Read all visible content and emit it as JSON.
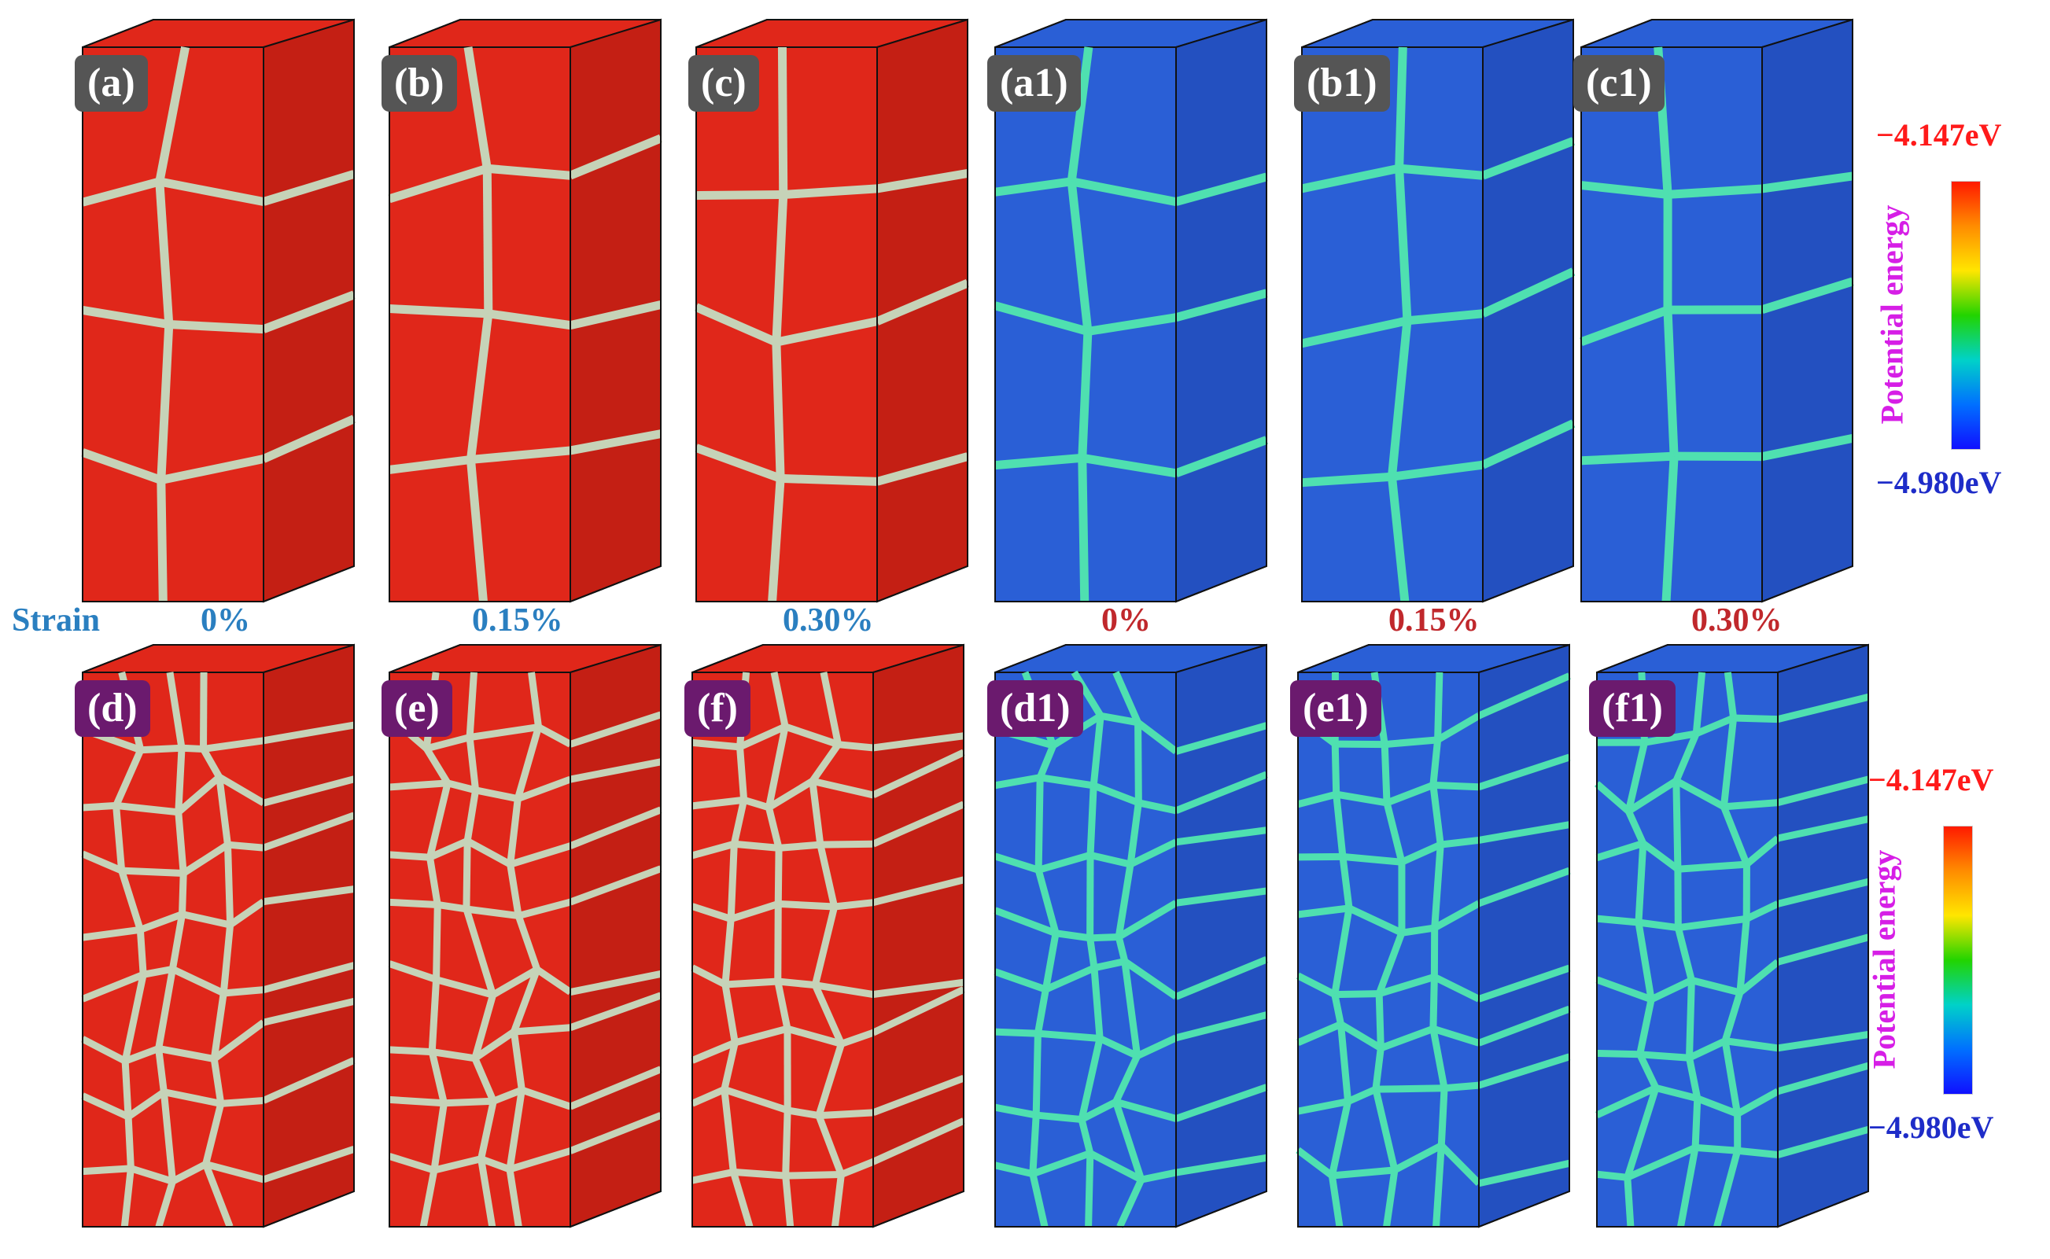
{
  "panels_top": [
    {
      "label": "(a)",
      "style": "red"
    },
    {
      "label": "(b)",
      "style": "red"
    },
    {
      "label": "(c)",
      "style": "red"
    },
    {
      "label": "(a1)",
      "style": "blue"
    },
    {
      "label": "(b1)",
      "style": "blue"
    },
    {
      "label": "(c1)",
      "style": "blue"
    }
  ],
  "panels_bottom": [
    {
      "label": "(d)",
      "style": "red"
    },
    {
      "label": "(e)",
      "style": "red"
    },
    {
      "label": "(f)",
      "style": "red"
    },
    {
      "label": "(d1)",
      "style": "blue"
    },
    {
      "label": "(e1)",
      "style": "blue"
    },
    {
      "label": "(f1)",
      "style": "blue"
    }
  ],
  "strain_row": {
    "title": "Strain",
    "values_left": [
      "0%",
      "0.15%",
      "0.30%"
    ],
    "values_right": [
      "0%",
      "0.15%",
      "0.30%"
    ]
  },
  "colorbar": {
    "title": "Potential energy",
    "max": "−4.147eV",
    "min": "−4.980eV"
  },
  "colors": {
    "label_gray": "#555555",
    "label_purple": "#6b1a6e",
    "grain_red": "#e0271a",
    "grain_blue": "#2a5fd6",
    "boundary": "#c6d3b8",
    "strain_blue": "#2a7fc0",
    "strain_red": "#c0282c"
  }
}
